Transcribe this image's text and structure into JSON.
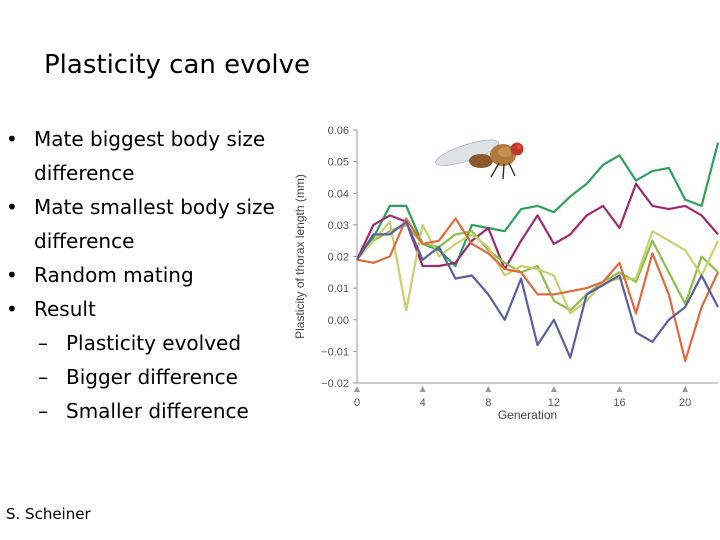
{
  "slide": {
    "title": "Plasticity can evolve",
    "credit": "S. Scheiner",
    "bullets": [
      {
        "text": "Mate biggest body size difference"
      },
      {
        "text": "Mate smallest body size difference"
      },
      {
        "text": "Random mating"
      },
      {
        "text": "Result",
        "sub": [
          "Plasticity evolved",
          "Bigger difference",
          "Smaller difference"
        ]
      }
    ]
  },
  "chart_data": {
    "type": "line",
    "xlabel": "Generation",
    "ylabel": "Plasticity of thorax length (mm)",
    "xlim": [
      0,
      22
    ],
    "ylim": [
      -0.02,
      0.06
    ],
    "xticks": [
      0,
      4,
      8,
      12,
      16,
      20
    ],
    "yticks": [
      -0.02,
      -0.01,
      0.0,
      0.01,
      0.02,
      0.03,
      0.04,
      0.05,
      0.06
    ],
    "ytick_labels": [
      "−0.02",
      "−0.01",
      "0.00",
      "0.01",
      "0.02",
      "0.03",
      "0.04",
      "0.05",
      "0.06"
    ],
    "grid": false,
    "x": [
      0,
      1,
      2,
      3,
      4,
      5,
      6,
      7,
      8,
      9,
      10,
      11,
      12,
      13,
      14,
      15,
      16,
      17,
      18,
      19,
      20,
      21,
      22
    ],
    "series": [
      {
        "color": "#2e9e5b",
        "values": [
          0.019,
          0.026,
          0.036,
          0.036,
          0.024,
          0.022,
          0.017,
          0.03,
          0.029,
          0.028,
          0.035,
          0.036,
          0.034,
          0.039,
          0.043,
          0.049,
          0.052,
          0.044,
          0.047,
          0.048,
          0.038,
          0.036,
          0.056
        ]
      },
      {
        "color": "#9e2a6e",
        "values": [
          0.019,
          0.03,
          0.033,
          0.031,
          0.017,
          0.017,
          0.018,
          0.025,
          0.029,
          0.016,
          0.025,
          0.033,
          0.024,
          0.027,
          0.033,
          0.036,
          0.029,
          0.043,
          0.036,
          0.035,
          0.036,
          0.033,
          0.027
        ]
      },
      {
        "color": "#8cbf4a",
        "values": [
          0.019,
          0.025,
          0.028,
          0.03,
          0.024,
          0.023,
          0.027,
          0.028,
          0.022,
          0.018,
          0.015,
          0.017,
          0.006,
          0.003,
          0.008,
          0.012,
          0.015,
          0.012,
          0.025,
          0.015,
          0.005,
          0.02,
          0.015
        ]
      },
      {
        "color": "#c9cf6e",
        "values": [
          0.019,
          0.025,
          0.031,
          0.003,
          0.03,
          0.02,
          0.024,
          0.027,
          0.023,
          0.014,
          0.017,
          0.016,
          0.014,
          0.002,
          0.006,
          0.012,
          0.013,
          0.013,
          0.028,
          0.025,
          0.022,
          0.014,
          0.025
        ]
      },
      {
        "color": "#e06a3c",
        "values": [
          0.019,
          0.018,
          0.02,
          0.032,
          0.024,
          0.025,
          0.032,
          0.024,
          0.021,
          0.016,
          0.015,
          0.008,
          0.008,
          0.009,
          0.01,
          0.012,
          0.018,
          0.002,
          0.021,
          0.008,
          -0.013,
          0.004,
          0.015
        ]
      },
      {
        "color": "#5b5fa0",
        "values": [
          0.019,
          0.027,
          0.027,
          0.031,
          0.019,
          0.023,
          0.013,
          0.014,
          0.008,
          0.0,
          0.013,
          -0.008,
          0.0,
          -0.012,
          0.008,
          0.011,
          0.014,
          -0.004,
          -0.007,
          0.0,
          0.004,
          0.014,
          0.004
        ]
      }
    ]
  }
}
